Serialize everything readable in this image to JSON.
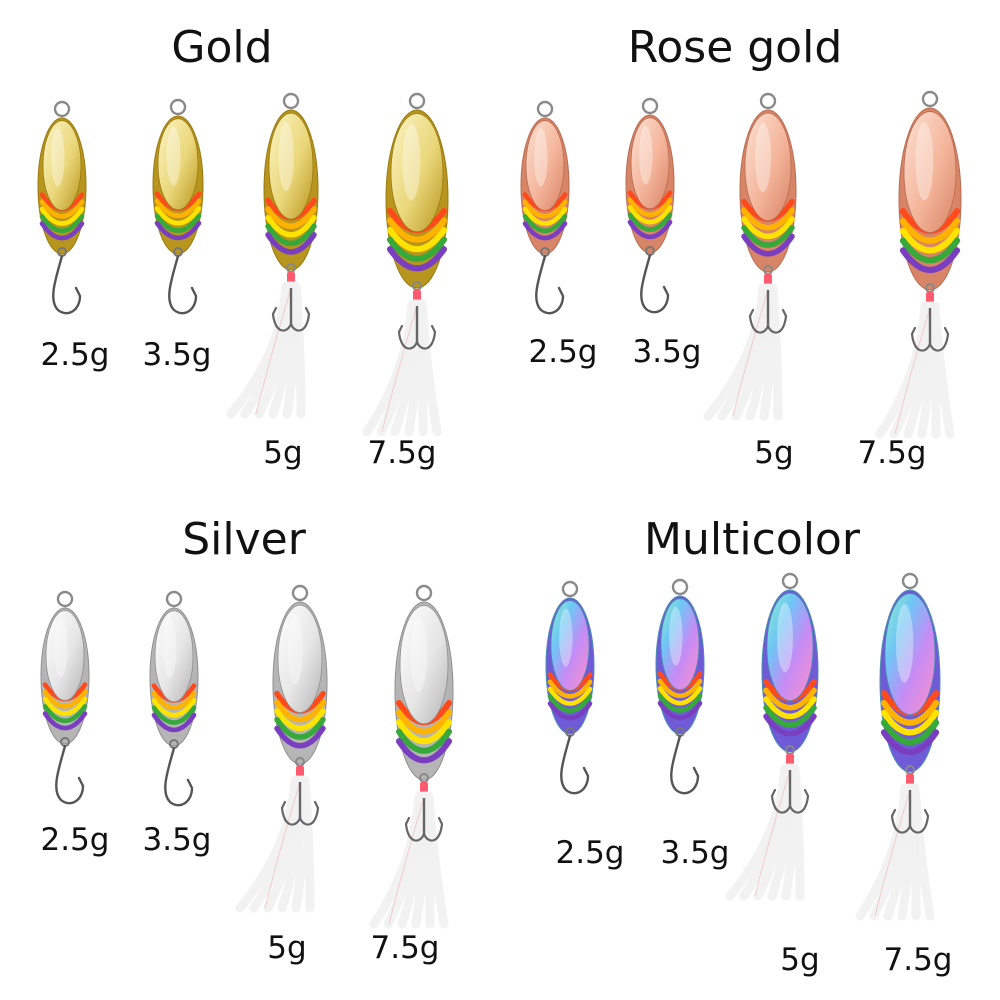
{
  "groups": [
    {
      "title": "Gold",
      "finish": "gold",
      "colors": {
        "light": "#fbf4c2",
        "mid": "#ead77a",
        "dark": "#b8951d",
        "edge": "#9a7a10"
      },
      "lures": [
        {
          "weight": "2.5g",
          "hook": "single",
          "feather": false
        },
        {
          "weight": "3.5g",
          "hook": "single",
          "feather": false
        },
        {
          "weight": "5g",
          "hook": "treble",
          "feather": true
        },
        {
          "weight": "7.5g",
          "hook": "treble",
          "feather": true
        }
      ]
    },
    {
      "title": "Rose gold",
      "finish": "rose-gold",
      "colors": {
        "light": "#fde0d2",
        "mid": "#f4b59a",
        "dark": "#d88466",
        "edge": "#b96d52"
      },
      "lures": [
        {
          "weight": "2.5g",
          "hook": "single",
          "feather": false
        },
        {
          "weight": "3.5g",
          "hook": "single",
          "feather": false
        },
        {
          "weight": "5g",
          "hook": "treble",
          "feather": true
        },
        {
          "weight": "7.5g",
          "hook": "treble",
          "feather": true
        }
      ]
    },
    {
      "title": "Silver",
      "finish": "silver",
      "colors": {
        "light": "#ffffff",
        "mid": "#e6e6e6",
        "dark": "#b5b5b5",
        "edge": "#8f8f8f"
      },
      "lures": [
        {
          "weight": "2.5g",
          "hook": "single",
          "feather": false
        },
        {
          "weight": "3.5g",
          "hook": "single",
          "feather": false
        },
        {
          "weight": "5g",
          "hook": "treble",
          "feather": true
        },
        {
          "weight": "7.5g",
          "hook": "treble",
          "feather": true
        }
      ]
    },
    {
      "title": "Multicolor",
      "finish": "multicolor",
      "colors": {
        "light": "#e9a5ff",
        "mid": "#7bc8f2",
        "dark": "#6f5bd8",
        "edge": "#4a8fb0"
      },
      "lures": [
        {
          "weight": "2.5g",
          "hook": "single",
          "feather": false
        },
        {
          "weight": "3.5g",
          "hook": "single",
          "feather": false
        },
        {
          "weight": "5g",
          "hook": "treble",
          "feather": true
        },
        {
          "weight": "7.5g",
          "hook": "treble",
          "feather": true
        }
      ]
    }
  ],
  "stripe_colors": [
    "#ff4a1c",
    "#ffb300",
    "#ffe300",
    "#37a83a",
    "#7a3fc0"
  ]
}
